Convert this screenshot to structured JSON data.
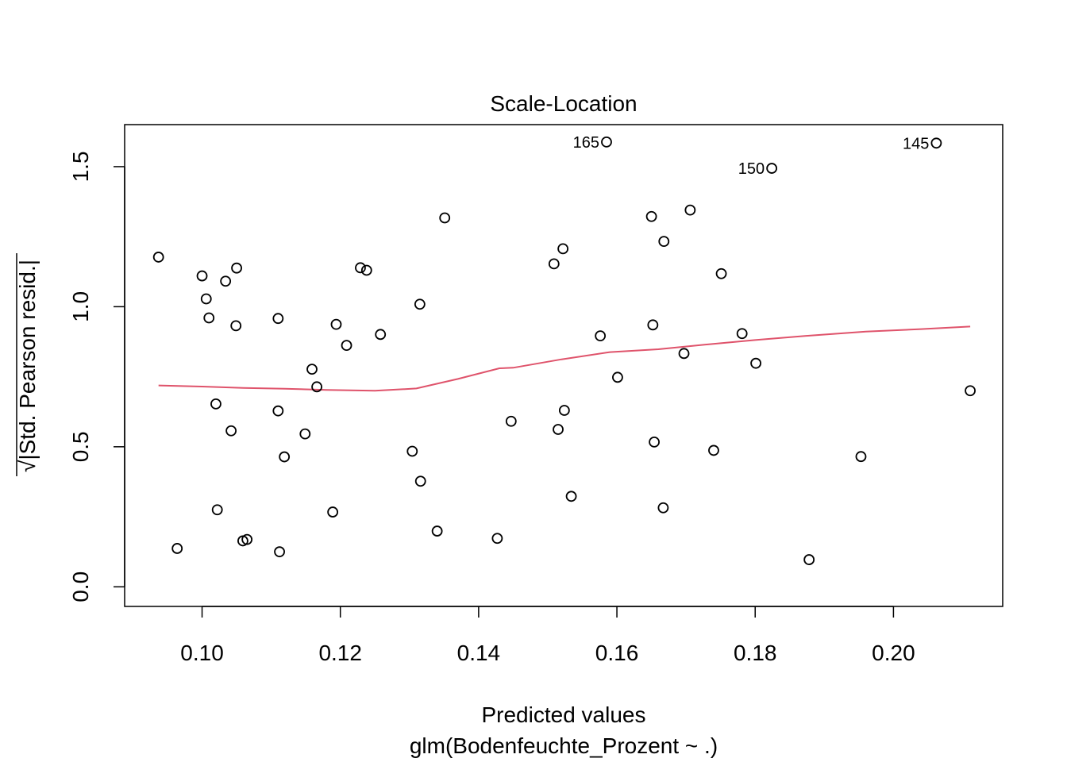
{
  "chart_data": {
    "type": "scatter",
    "title": "Scale-Location",
    "xlabel": "Predicted values",
    "xlabel_sub": "glm(Bodenfeuchte_Prozent ~ .)",
    "ylabel_radical": "√",
    "ylabel_text": "|Std. Pearson resid.|",
    "xlim": [
      0.0888,
      0.2158
    ],
    "ylim": [
      -0.07,
      1.65
    ],
    "xticks": [
      0.1,
      0.12,
      0.14,
      0.16,
      0.18,
      0.2
    ],
    "xtick_labels": [
      "0.10",
      "0.12",
      "0.14",
      "0.16",
      "0.18",
      "0.20"
    ],
    "yticks": [
      0.0,
      0.5,
      1.0,
      1.5
    ],
    "ytick_labels": [
      "0.0",
      "0.5",
      "1.0",
      "1.5"
    ],
    "grid": false,
    "point_color": "#000000",
    "smooth_color": "#DF536B",
    "points": [
      {
        "x": 0.0937,
        "y": 1.177
      },
      {
        "x": 0.0964,
        "y": 0.137
      },
      {
        "x": 0.1,
        "y": 1.11
      },
      {
        "x": 0.1006,
        "y": 1.028
      },
      {
        "x": 0.101,
        "y": 0.96
      },
      {
        "x": 0.102,
        "y": 0.653
      },
      {
        "x": 0.1022,
        "y": 0.275
      },
      {
        "x": 0.1034,
        "y": 1.091
      },
      {
        "x": 0.1042,
        "y": 0.557
      },
      {
        "x": 0.1049,
        "y": 0.932
      },
      {
        "x": 0.105,
        "y": 1.138
      },
      {
        "x": 0.1059,
        "y": 0.164
      },
      {
        "x": 0.1065,
        "y": 0.169
      },
      {
        "x": 0.111,
        "y": 0.958
      },
      {
        "x": 0.111,
        "y": 0.628
      },
      {
        "x": 0.1112,
        "y": 0.125
      },
      {
        "x": 0.1119,
        "y": 0.464
      },
      {
        "x": 0.1149,
        "y": 0.546
      },
      {
        "x": 0.1159,
        "y": 0.777
      },
      {
        "x": 0.1166,
        "y": 0.714
      },
      {
        "x": 0.1189,
        "y": 0.267
      },
      {
        "x": 0.1194,
        "y": 0.937
      },
      {
        "x": 0.1209,
        "y": 0.862
      },
      {
        "x": 0.1229,
        "y": 1.139
      },
      {
        "x": 0.1238,
        "y": 1.13
      },
      {
        "x": 0.1258,
        "y": 0.901
      },
      {
        "x": 0.1304,
        "y": 0.484
      },
      {
        "x": 0.1315,
        "y": 1.009
      },
      {
        "x": 0.1316,
        "y": 0.377
      },
      {
        "x": 0.134,
        "y": 0.199
      },
      {
        "x": 0.1351,
        "y": 1.317
      },
      {
        "x": 0.1427,
        "y": 0.173
      },
      {
        "x": 0.1447,
        "y": 0.591
      },
      {
        "x": 0.1509,
        "y": 1.153
      },
      {
        "x": 0.1515,
        "y": 0.562
      },
      {
        "x": 0.1522,
        "y": 1.207
      },
      {
        "x": 0.1524,
        "y": 0.63
      },
      {
        "x": 0.1534,
        "y": 0.323
      },
      {
        "x": 0.1576,
        "y": 0.896
      },
      {
        "x": 0.1601,
        "y": 0.748
      },
      {
        "x": 0.165,
        "y": 1.322
      },
      {
        "x": 0.1652,
        "y": 0.935
      },
      {
        "x": 0.1654,
        "y": 0.517
      },
      {
        "x": 0.1667,
        "y": 0.282
      },
      {
        "x": 0.1668,
        "y": 1.233
      },
      {
        "x": 0.1697,
        "y": 0.833
      },
      {
        "x": 0.1706,
        "y": 1.345
      },
      {
        "x": 0.174,
        "y": 0.487
      },
      {
        "x": 0.1751,
        "y": 1.118
      },
      {
        "x": 0.1781,
        "y": 0.904
      },
      {
        "x": 0.1801,
        "y": 0.798
      },
      {
        "x": 0.1878,
        "y": 0.097
      },
      {
        "x": 0.1953,
        "y": 0.465
      },
      {
        "x": 0.2111,
        "y": 0.7
      },
      {
        "x": 0.1585,
        "y": 1.588,
        "label": "165"
      },
      {
        "x": 0.1824,
        "y": 1.494,
        "label": "150"
      },
      {
        "x": 0.2062,
        "y": 1.584,
        "label": "145"
      }
    ],
    "smooth_line": [
      {
        "x": 0.0937,
        "y": 0.719
      },
      {
        "x": 0.1,
        "y": 0.715
      },
      {
        "x": 0.106,
        "y": 0.71
      },
      {
        "x": 0.112,
        "y": 0.707
      },
      {
        "x": 0.118,
        "y": 0.703
      },
      {
        "x": 0.125,
        "y": 0.7
      },
      {
        "x": 0.131,
        "y": 0.708
      },
      {
        "x": 0.137,
        "y": 0.742
      },
      {
        "x": 0.143,
        "y": 0.78
      },
      {
        "x": 0.145,
        "y": 0.782
      },
      {
        "x": 0.152,
        "y": 0.812
      },
      {
        "x": 0.159,
        "y": 0.838
      },
      {
        "x": 0.166,
        "y": 0.848
      },
      {
        "x": 0.173,
        "y": 0.865
      },
      {
        "x": 0.18,
        "y": 0.881
      },
      {
        "x": 0.188,
        "y": 0.897
      },
      {
        "x": 0.196,
        "y": 0.911
      },
      {
        "x": 0.204,
        "y": 0.92
      },
      {
        "x": 0.2111,
        "y": 0.929
      }
    ]
  }
}
